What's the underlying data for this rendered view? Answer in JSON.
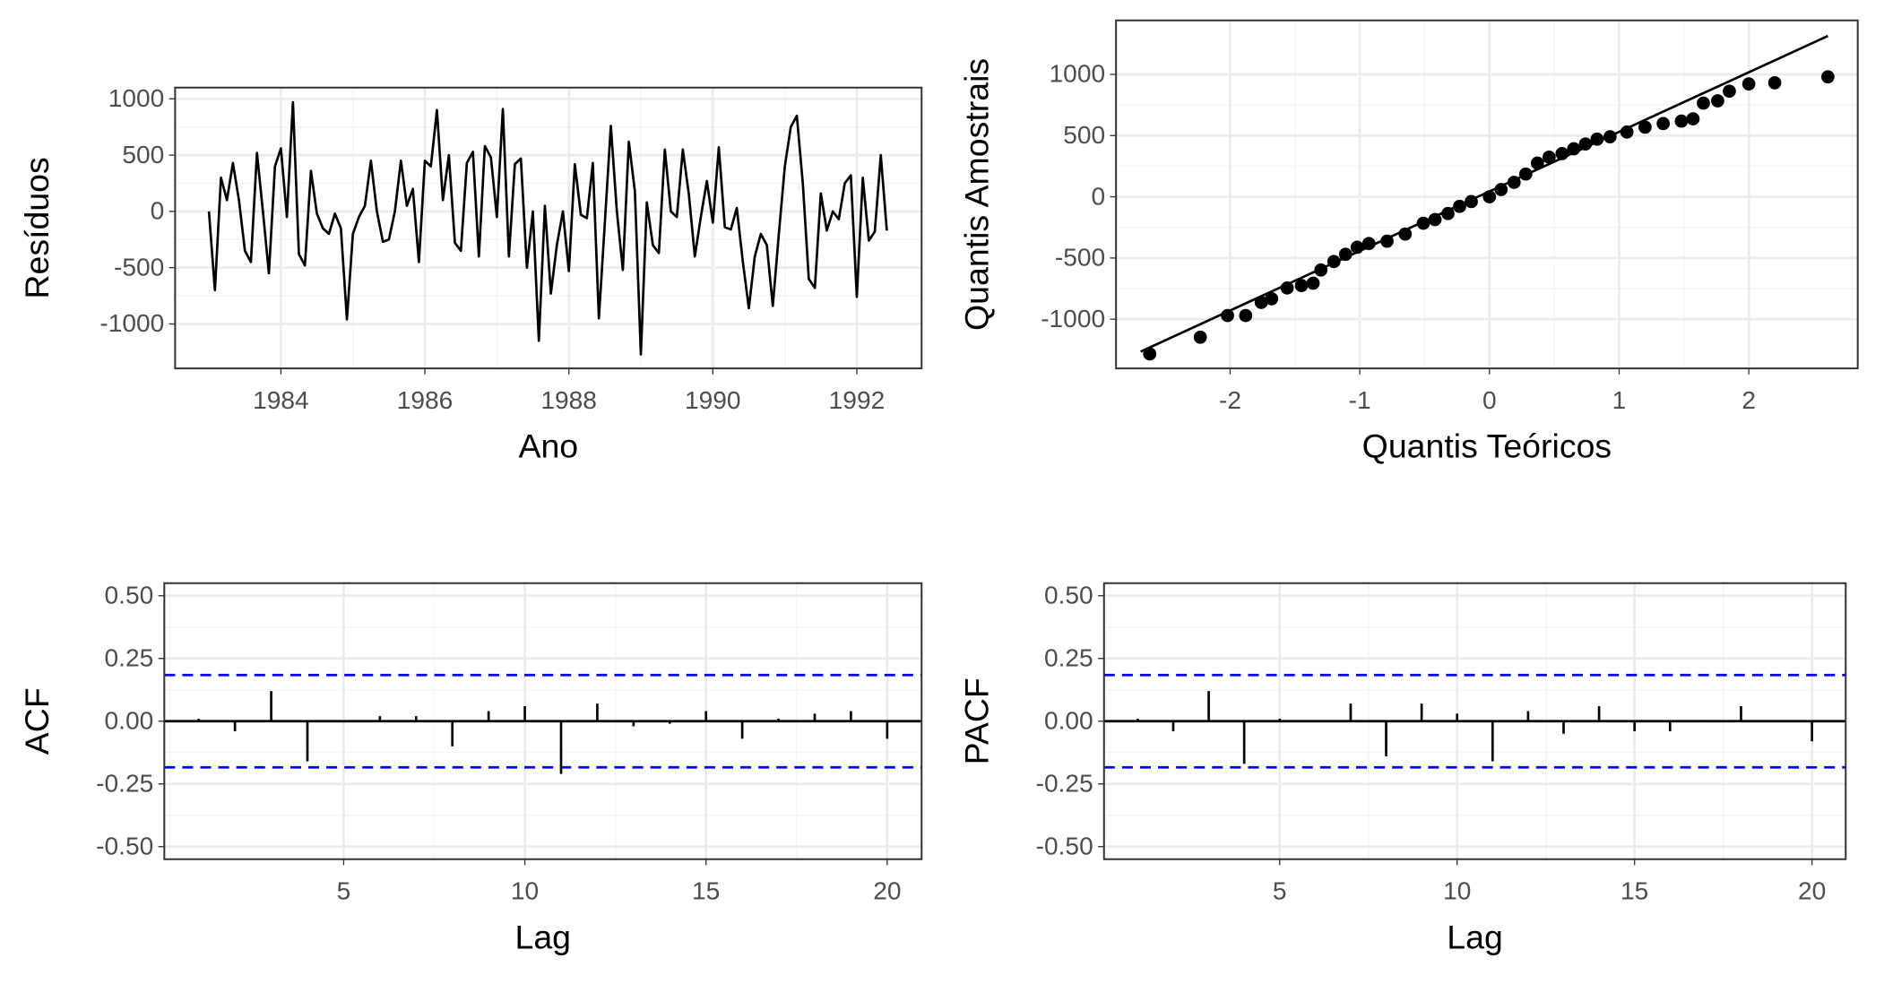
{
  "chart_data": [
    {
      "type": "line",
      "x_label": "Ano",
      "y_label": "Resíduos",
      "color": "#000000",
      "grid": true,
      "xlim": [
        1982.53,
        1992.9
      ],
      "ylim": [
        -1395,
        1100
      ],
      "xticks": [
        1984,
        1986,
        1988,
        1990,
        1992
      ],
      "yticks": [
        -1000,
        -500,
        0,
        500,
        1000
      ],
      "x": [
        1983.0,
        1983.083,
        1983.167,
        1983.25,
        1983.333,
        1983.417,
        1983.5,
        1983.583,
        1983.667,
        1983.75,
        1983.833,
        1983.917,
        1984.0,
        1984.083,
        1984.167,
        1984.25,
        1984.333,
        1984.417,
        1984.5,
        1984.583,
        1984.667,
        1984.75,
        1984.833,
        1984.917,
        1985.0,
        1985.083,
        1985.167,
        1985.25,
        1985.333,
        1985.417,
        1985.5,
        1985.583,
        1985.667,
        1985.75,
        1985.833,
        1985.917,
        1986.0,
        1986.083,
        1986.167,
        1986.25,
        1986.333,
        1986.417,
        1986.5,
        1986.583,
        1986.667,
        1986.75,
        1986.833,
        1986.917,
        1987.0,
        1987.083,
        1987.167,
        1987.25,
        1987.333,
        1987.417,
        1987.5,
        1987.583,
        1987.667,
        1987.75,
        1987.833,
        1987.917,
        1988.0,
        1988.083,
        1988.167,
        1988.25,
        1988.333,
        1988.417,
        1988.5,
        1988.583,
        1988.667,
        1988.75,
        1988.833,
        1988.917,
        1989.0,
        1989.083,
        1989.167,
        1989.25,
        1989.333,
        1989.417,
        1989.5,
        1989.583,
        1989.667,
        1989.75,
        1989.833,
        1989.917,
        1990.0,
        1990.083,
        1990.167,
        1990.25,
        1990.333,
        1990.417,
        1990.5,
        1990.583,
        1990.667,
        1990.75,
        1990.833,
        1990.917,
        1991.0,
        1991.083,
        1991.167,
        1991.25,
        1991.333,
        1991.417,
        1991.5,
        1991.583,
        1991.667,
        1991.75,
        1991.833,
        1991.917,
        1992.0,
        1992.083,
        1992.167,
        1992.25,
        1992.333,
        1992.417
      ],
      "values": [
        0,
        -700,
        300,
        100,
        430,
        100,
        -350,
        -450,
        520,
        0,
        -550,
        400,
        560,
        -50,
        970,
        -380,
        -480,
        360,
        -20,
        -150,
        -200,
        -20,
        -150,
        -960,
        -200,
        -50,
        50,
        450,
        0,
        -270,
        -250,
        0,
        450,
        50,
        200,
        -450,
        450,
        400,
        900,
        100,
        500,
        -280,
        -350,
        430,
        530,
        -400,
        580,
        480,
        -50,
        910,
        -400,
        420,
        470,
        -500,
        0,
        -1150,
        50,
        -730,
        -300,
        0,
        -530,
        420,
        -30,
        -60,
        430,
        -950,
        -100,
        760,
        0,
        -520,
        620,
        180,
        -1270,
        80,
        -300,
        -370,
        550,
        0,
        -50,
        550,
        150,
        -400,
        -50,
        270,
        -100,
        570,
        -140,
        -160,
        30,
        -450,
        -860,
        -400,
        -200,
        -300,
        -840,
        -200,
        400,
        750,
        850,
        250,
        -600,
        -680,
        160,
        -170,
        0,
        -70,
        250,
        320,
        -760,
        300,
        -260,
        -180,
        500,
        -170
      ]
    },
    {
      "type": "scatter",
      "x_label": "Quantis Teóricos",
      "y_label": "Quantis Amostrais",
      "color": "#000000",
      "grid": true,
      "xlim": [
        -2.88,
        2.84
      ],
      "ylim": [
        -1402,
        1441
      ],
      "xticks": [
        -2,
        -1,
        0,
        1,
        2
      ],
      "yticks": [
        -1000,
        -500,
        0,
        500,
        1000
      ],
      "x": [
        -2.62,
        -2.23,
        -2.02,
        -1.88,
        -1.76,
        -1.68,
        -1.56,
        -1.45,
        -1.36,
        -1.3,
        -1.2,
        -1.11,
        -1.02,
        -0.93,
        -0.79,
        -0.65,
        -0.51,
        -0.42,
        -0.32,
        -0.23,
        -0.14,
        0,
        0.09,
        0.19,
        0.28,
        0.37,
        0.46,
        0.56,
        0.65,
        0.74,
        0.83,
        0.93,
        1.06,
        1.2,
        1.34,
        1.48,
        1.57,
        1.65,
        1.76,
        1.85,
        2.0,
        2.2,
        2.61
      ],
      "values": [
        -1284,
        -1147,
        -970,
        -970,
        -863,
        -833,
        -745,
        -725,
        -706,
        -598,
        -529,
        -470,
        -412,
        -382,
        -363,
        -304,
        -216,
        -186,
        -137,
        -78,
        -39,
        0,
        59,
        118,
        186,
        275,
        324,
        353,
        392,
        431,
        471,
        490,
        529,
        569,
        598,
        618,
        637,
        765,
        784,
        863,
        922,
        931,
        980
      ],
      "line": {
        "x": [
          -2.69,
          2.61
        ],
        "y": [
          -1265,
          1314
        ]
      }
    },
    {
      "type": "acf",
      "x_label": "Lag",
      "y_label": "ACF",
      "color": "#000000",
      "grid": true,
      "xlim": [
        0.05,
        20.95
      ],
      "ylim": [
        -0.55,
        0.55
      ],
      "xticks": [
        5,
        10,
        15,
        20
      ],
      "yticks": [
        {
          "value": -0.5,
          "label": "-0.50"
        },
        {
          "value": -0.25,
          "label": "-0.25"
        },
        {
          "value": 0,
          "label": "0.00"
        },
        {
          "value": 0.25,
          "label": "0.25"
        },
        {
          "value": 0.5,
          "label": "0.50"
        }
      ],
      "ci": [
        0.184,
        -0.184
      ],
      "ci_color": "#0000ff",
      "x": [
        1,
        2,
        3,
        4,
        5,
        6,
        7,
        8,
        9,
        10,
        11,
        12,
        13,
        14,
        15,
        16,
        17,
        18,
        19,
        20
      ],
      "values": [
        0.01,
        -0.04,
        0.12,
        -0.16,
        -0.005,
        0.02,
        0.02,
        -0.1,
        0.04,
        0.06,
        -0.21,
        0.07,
        -0.02,
        -0.01,
        0.04,
        -0.07,
        0.01,
        0.03,
        0.04,
        -0.07
      ]
    },
    {
      "type": "acf",
      "x_label": "Lag",
      "y_label": "PACF",
      "color": "#000000",
      "grid": true,
      "xlim": [
        0.05,
        20.95
      ],
      "ylim": [
        -0.55,
        0.55
      ],
      "xticks": [
        5,
        10,
        15,
        20
      ],
      "yticks": [
        {
          "value": -0.5,
          "label": "-0.50"
        },
        {
          "value": -0.25,
          "label": "-0.25"
        },
        {
          "value": 0,
          "label": "0.00"
        },
        {
          "value": 0.25,
          "label": "0.25"
        },
        {
          "value": 0.5,
          "label": "0.50"
        }
      ],
      "ci": [
        0.184,
        -0.184
      ],
      "ci_color": "#0000ff",
      "x": [
        1,
        2,
        3,
        4,
        5,
        6,
        7,
        8,
        9,
        10,
        11,
        12,
        13,
        14,
        15,
        16,
        17,
        18,
        19,
        20
      ],
      "values": [
        0.01,
        -0.04,
        0.12,
        -0.17,
        0.01,
        0,
        0.07,
        -0.14,
        0.07,
        0.03,
        -0.16,
        0.04,
        -0.05,
        0.06,
        -0.04,
        -0.04,
        0.005,
        0.06,
        0,
        -0.08
      ]
    }
  ]
}
